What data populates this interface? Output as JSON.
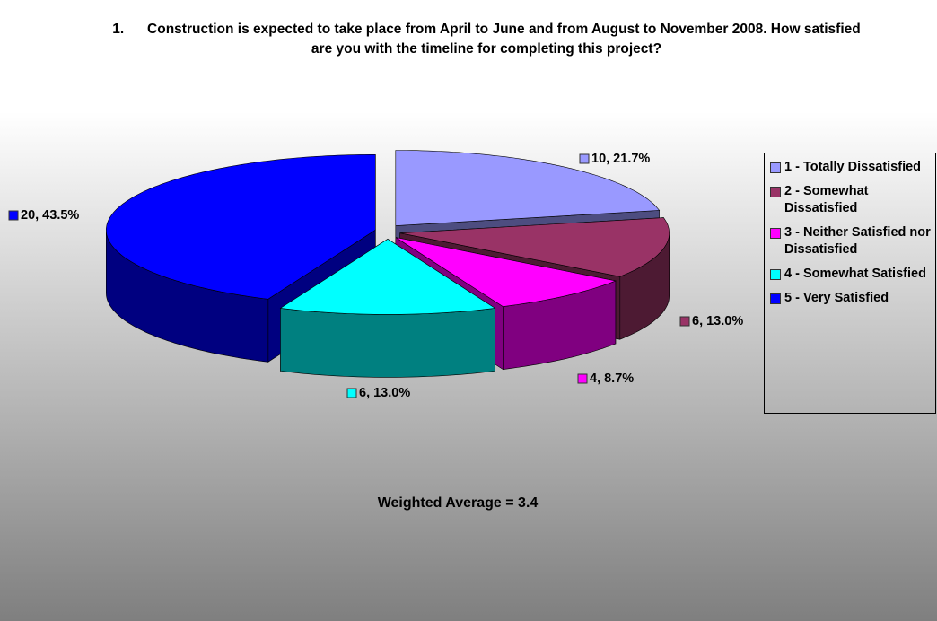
{
  "chart_data": {
    "type": "pie",
    "title": "1.      Construction is expected to take place from April to June and from August to November 2008. How satisfied are you with the timeline for completing this project?",
    "categories": [
      "1 - Totally Dissatisfied",
      "2 - Somewhat Dissatisfied",
      "3 - Neither Satisfied nor Dissatisfied",
      "4 - Somewhat Satisfied",
      "5 - Very Satisfied"
    ],
    "values": [
      10,
      6,
      4,
      6,
      20
    ],
    "value_labels": [
      "10, 21.7%",
      "6, 13.0%",
      "4, 8.7%",
      "6, 13.0%",
      "20, 43.5%"
    ],
    "colors": [
      "#9999ff",
      "#993366",
      "#ff00ff",
      "#00ffff",
      "#0000ff"
    ],
    "annotation": "Weighted Average = 3.4",
    "legend": "right"
  }
}
